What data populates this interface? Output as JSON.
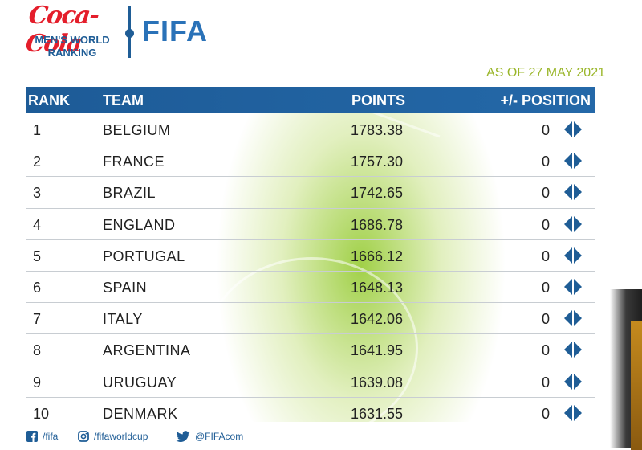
{
  "logo": {
    "brand": "Coca-Cola",
    "subtitle_line1": "MEN'S WORLD",
    "subtitle_line2": "RANKING",
    "org": "FIFA"
  },
  "as_of": "AS OF 27 MAY 2021",
  "table": {
    "headers": {
      "rank": "RANK",
      "team": "TEAM",
      "points": "POINTS",
      "position": "+/- POSITION"
    },
    "rows": [
      {
        "rank": "1",
        "team": "BELGIUM",
        "points": "1783.38",
        "change": "0"
      },
      {
        "rank": "2",
        "team": "FRANCE",
        "points": "1757.30",
        "change": "0"
      },
      {
        "rank": "3",
        "team": "BRAZIL",
        "points": "1742.65",
        "change": "0"
      },
      {
        "rank": "4",
        "team": "ENGLAND",
        "points": "1686.78",
        "change": "0"
      },
      {
        "rank": "5",
        "team": "PORTUGAL",
        "points": "1666.12",
        "change": "0"
      },
      {
        "rank": "6",
        "team": "SPAIN",
        "points": "1648.13",
        "change": "0"
      },
      {
        "rank": "7",
        "team": "ITALY",
        "points": "1642.06",
        "change": "0"
      },
      {
        "rank": "8",
        "team": "ARGENTINA",
        "points": "1641.95",
        "change": "0"
      },
      {
        "rank": "9",
        "team": "URUGUAY",
        "points": "1639.08",
        "change": "0"
      },
      {
        "rank": "10",
        "team": "DENMARK",
        "points": "1631.55",
        "change": "0"
      }
    ]
  },
  "footer": {
    "facebook": "/fifa",
    "instagram": "/fifaworldcup",
    "twitter": "@FIFAcom"
  },
  "colors": {
    "brand_blue": "#1f5d96",
    "coke_red": "#e41e2b",
    "accent_green": "#9ab62a"
  },
  "icons": [
    "unchanged-position-icon",
    "facebook-icon",
    "instagram-icon",
    "twitter-icon"
  ]
}
